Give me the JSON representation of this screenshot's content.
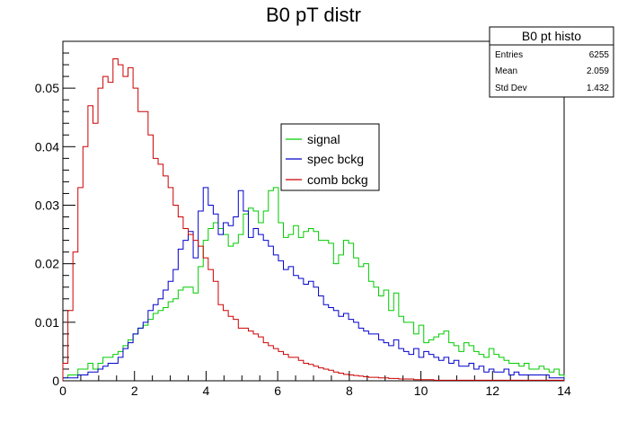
{
  "chart_data": {
    "type": "histogram",
    "title": "B0 pT distr",
    "xlabel": "",
    "ylabel": "",
    "xlim": [
      0,
      14
    ],
    "ylim": [
      0,
      0.058
    ],
    "x_ticks": [
      0,
      2,
      4,
      6,
      8,
      10,
      12,
      14
    ],
    "x_tick_labels": [
      "0",
      "2",
      "4",
      "6",
      "8",
      "10",
      "12",
      "14"
    ],
    "y_ticks": [
      0,
      0.01,
      0.02,
      0.03,
      0.04,
      0.05
    ],
    "y_tick_labels": [
      "0",
      "0.01",
      "0.02",
      "0.03",
      "0.04",
      "0.05"
    ],
    "bin_width": 0.14,
    "series": [
      {
        "name": "signal",
        "color": "#00cc00",
        "values": [
          0.0005,
          0.001,
          0.001,
          0.002,
          0.002,
          0.003,
          0.002,
          0.003,
          0.004,
          0.004,
          0.0045,
          0.005,
          0.006,
          0.007,
          0.008,
          0.009,
          0.0095,
          0.0105,
          0.0115,
          0.012,
          0.0125,
          0.0135,
          0.014,
          0.0155,
          0.016,
          0.016,
          0.015,
          0.0195,
          0.024,
          0.026,
          0.027,
          0.026,
          0.025,
          0.023,
          0.0235,
          0.025,
          0.0285,
          0.0295,
          0.029,
          0.027,
          0.029,
          0.0325,
          0.033,
          0.027,
          0.0245,
          0.025,
          0.0265,
          0.0245,
          0.0255,
          0.026,
          0.0255,
          0.024,
          0.024,
          0.0235,
          0.02,
          0.0215,
          0.024,
          0.0235,
          0.021,
          0.0195,
          0.02,
          0.017,
          0.016,
          0.0145,
          0.0155,
          0.012,
          0.015,
          0.011,
          0.01,
          0.01,
          0.008,
          0.0095,
          0.0065,
          0.007,
          0.0075,
          0.008,
          0.0085,
          0.0065,
          0.006,
          0.005,
          0.0065,
          0.006,
          0.005,
          0.0045,
          0.004,
          0.0055,
          0.0045,
          0.004,
          0.0035,
          0.003,
          0.003,
          0.0025,
          0.003,
          0.002,
          0.002,
          0.0025,
          0.002,
          0.0015,
          0.002,
          0.001
        ]
      },
      {
        "name": "spec bckg",
        "color": "#0000cc",
        "values": [
          0.0005,
          0.0005,
          0.0005,
          0.001,
          0.001,
          0.0015,
          0.0015,
          0.002,
          0.0025,
          0.003,
          0.003,
          0.004,
          0.0055,
          0.0065,
          0.008,
          0.009,
          0.01,
          0.012,
          0.013,
          0.014,
          0.0155,
          0.017,
          0.019,
          0.0225,
          0.024,
          0.0255,
          0.021,
          0.029,
          0.033,
          0.03,
          0.0285,
          0.025,
          0.027,
          0.0265,
          0.028,
          0.0325,
          0.029,
          0.0245,
          0.026,
          0.025,
          0.024,
          0.023,
          0.0215,
          0.0205,
          0.019,
          0.0195,
          0.018,
          0.0175,
          0.0165,
          0.017,
          0.016,
          0.0145,
          0.013,
          0.0125,
          0.012,
          0.011,
          0.0115,
          0.0105,
          0.01,
          0.009,
          0.0085,
          0.008,
          0.008,
          0.007,
          0.0065,
          0.006,
          0.007,
          0.0055,
          0.005,
          0.0045,
          0.0055,
          0.004,
          0.005,
          0.0045,
          0.004,
          0.0035,
          0.004,
          0.003,
          0.0035,
          0.0025,
          0.0025,
          0.003,
          0.002,
          0.0025,
          0.0015,
          0.002,
          0.0015,
          0.0015,
          0.002,
          0.001,
          0.0015,
          0.001,
          0.001,
          0.001,
          0.001,
          0.001,
          0.001,
          0.0005,
          0.0005,
          0.0005
        ]
      },
      {
        "name": "comb bckg",
        "color": "#cc0000",
        "values": [
          0.003,
          0.012,
          0.022,
          0.033,
          0.04,
          0.047,
          0.044,
          0.05,
          0.052,
          0.051,
          0.055,
          0.054,
          0.052,
          0.0535,
          0.05,
          0.046,
          0.046,
          0.042,
          0.038,
          0.037,
          0.035,
          0.033,
          0.03,
          0.028,
          0.026,
          0.025,
          0.024,
          0.023,
          0.021,
          0.019,
          0.017,
          0.013,
          0.012,
          0.011,
          0.0105,
          0.009,
          0.009,
          0.0085,
          0.008,
          0.0075,
          0.0065,
          0.006,
          0.0055,
          0.005,
          0.0045,
          0.004,
          0.004,
          0.0035,
          0.003,
          0.0028,
          0.0025,
          0.0022,
          0.002,
          0.0018,
          0.0015,
          0.0013,
          0.0011,
          0.001,
          0.0009,
          0.0008,
          0.0007,
          0.0006,
          0.0006,
          0.0005,
          0.0005,
          0.0004,
          0.0004,
          0.0003,
          0.0003,
          0.0003,
          0.0002,
          0.0002,
          0.0002,
          0.0002,
          0.0001,
          0.0001,
          0.0001,
          0.0001,
          0.0001,
          0.0001,
          0.0001,
          0.0001,
          0.0001,
          0.0001,
          0.0001,
          0.0001,
          0.0001,
          0.0001,
          0.0001,
          0.0001,
          0.0001,
          0.0001,
          0.0001,
          0.0001,
          0.0001,
          0.0001,
          0.0001,
          0.0001,
          0.0001,
          0.0001
        ]
      }
    ],
    "legend": {
      "placement": "center",
      "entries": [
        "signal",
        "spec bckg",
        "comb bckg"
      ]
    },
    "stats_box": {
      "title": "B0 pt histo",
      "rows": [
        {
          "label": "Entries",
          "value": "6255"
        },
        {
          "label": "Mean",
          "value": "2.059"
        },
        {
          "label": "Std Dev",
          "value": "1.432"
        }
      ]
    }
  }
}
